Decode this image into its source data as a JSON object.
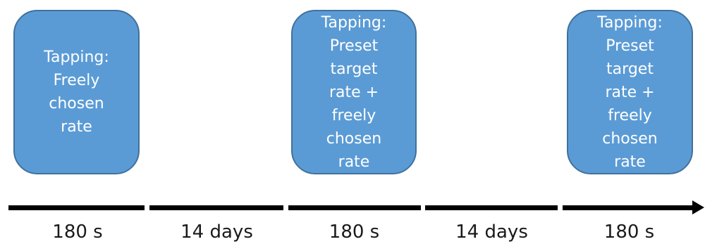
{
  "sessions": [
    {
      "lines": [
        "Tapping:",
        "Freely",
        "chosen",
        "rate"
      ]
    },
    {
      "lines": [
        "Tapping:",
        "Preset",
        "target",
        "rate +",
        "freely",
        "chosen",
        "rate"
      ]
    },
    {
      "lines": [
        "Tapping:",
        "Preset",
        "target",
        "rate +",
        "freely",
        "chosen",
        "rate"
      ]
    }
  ],
  "timeline": {
    "labels": [
      "180 s",
      "14 days",
      "180 s",
      "14 days",
      "180 s"
    ]
  },
  "colors": {
    "box_fill": "#5b9bd5",
    "box_border": "#41719c",
    "box_text": "#ffffff",
    "timeline": "#000000"
  }
}
